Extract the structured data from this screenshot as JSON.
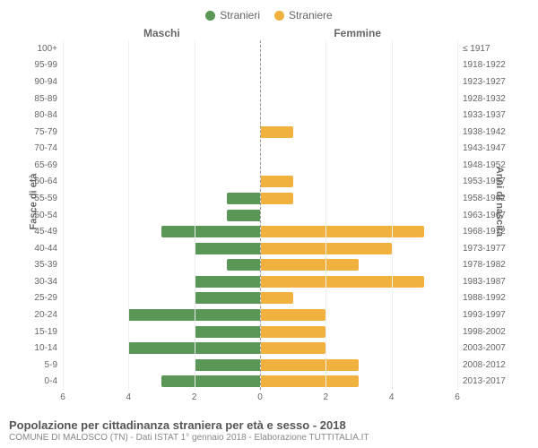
{
  "chart": {
    "type": "population-pyramid",
    "legend": {
      "male": {
        "label": "Stranieri",
        "color": "#5a9656"
      },
      "female": {
        "label": "Straniere",
        "color": "#f0b13e"
      }
    },
    "headers": {
      "male": "Maschi",
      "female": "Femmine"
    },
    "y_axis_left": {
      "title": "Fasce di età"
    },
    "y_axis_right": {
      "title": "Anni di nascita"
    },
    "x_axis": {
      "min": -6,
      "max": 6,
      "ticks": [
        6,
        4,
        2,
        0,
        2,
        4,
        6
      ]
    },
    "rows": [
      {
        "age": "100+",
        "birth": "≤ 1917",
        "m": 0,
        "f": 0
      },
      {
        "age": "95-99",
        "birth": "1918-1922",
        "m": 0,
        "f": 0
      },
      {
        "age": "90-94",
        "birth": "1923-1927",
        "m": 0,
        "f": 0
      },
      {
        "age": "85-89",
        "birth": "1928-1932",
        "m": 0,
        "f": 0
      },
      {
        "age": "80-84",
        "birth": "1933-1937",
        "m": 0,
        "f": 0
      },
      {
        "age": "75-79",
        "birth": "1938-1942",
        "m": 0,
        "f": 1
      },
      {
        "age": "70-74",
        "birth": "1943-1947",
        "m": 0,
        "f": 0
      },
      {
        "age": "65-69",
        "birth": "1948-1952",
        "m": 0,
        "f": 0
      },
      {
        "age": "60-64",
        "birth": "1953-1957",
        "m": 0,
        "f": 1
      },
      {
        "age": "55-59",
        "birth": "1958-1962",
        "m": 1,
        "f": 1
      },
      {
        "age": "50-54",
        "birth": "1963-1967",
        "m": 1,
        "f": 0
      },
      {
        "age": "45-49",
        "birth": "1968-1972",
        "m": 3,
        "f": 5
      },
      {
        "age": "40-44",
        "birth": "1973-1977",
        "m": 2,
        "f": 4
      },
      {
        "age": "35-39",
        "birth": "1978-1982",
        "m": 1,
        "f": 3
      },
      {
        "age": "30-34",
        "birth": "1983-1987",
        "m": 2,
        "f": 5
      },
      {
        "age": "25-29",
        "birth": "1988-1992",
        "m": 2,
        "f": 1
      },
      {
        "age": "20-24",
        "birth": "1993-1997",
        "m": 4,
        "f": 2
      },
      {
        "age": "15-19",
        "birth": "1998-2002",
        "m": 2,
        "f": 2
      },
      {
        "age": "10-14",
        "birth": "2003-2007",
        "m": 4,
        "f": 2
      },
      {
        "age": "5-9",
        "birth": "2008-2012",
        "m": 2,
        "f": 3
      },
      {
        "age": "0-4",
        "birth": "2013-2017",
        "m": 3,
        "f": 3
      }
    ],
    "colors": {
      "background": "#ffffff",
      "grid": "#eeeeee",
      "center": "#999999",
      "text": "#666666"
    },
    "bar_height_pct": 70
  },
  "footer": {
    "title": "Popolazione per cittadinanza straniera per età e sesso - 2018",
    "subtitle": "COMUNE DI MALOSCO (TN) - Dati ISTAT 1° gennaio 2018 - Elaborazione TUTTITALIA.IT"
  }
}
